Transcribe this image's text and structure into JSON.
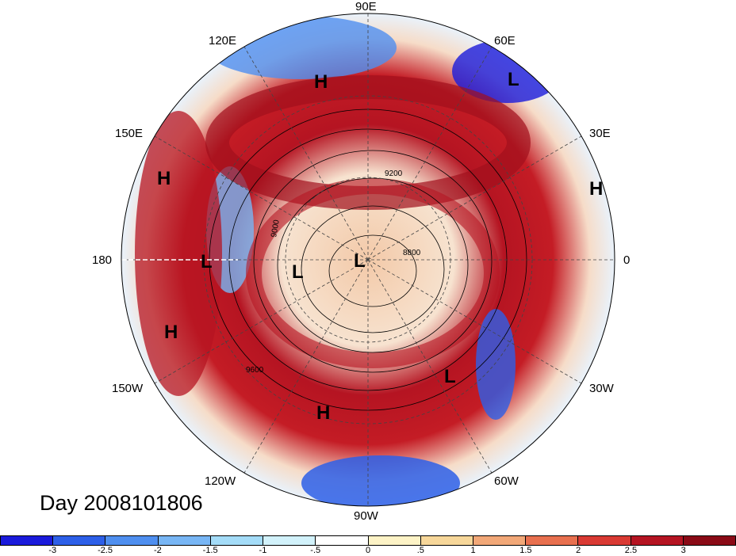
{
  "title": "Day 2008101806",
  "longitude_labels": {
    "top": "90E",
    "upper_left": "120E",
    "upper_right": "60E",
    "left_upper": "150E",
    "right_upper": "30E",
    "left": "180",
    "right": "0",
    "left_lower": "150W",
    "right_lower": "30W",
    "lower_left": "120W",
    "lower_right": "60W",
    "bottom": "90W"
  },
  "pressure_markers": [
    "H",
    "L",
    "H",
    "H",
    "L",
    "L",
    "L",
    "H",
    "H",
    "L"
  ],
  "contour_labels": [
    "9200",
    "8800",
    "9000",
    "9600"
  ],
  "colorbar": {
    "tick_labels": [
      "-3",
      "-2.5",
      "-2",
      "-1.5",
      "-1",
      "-.5",
      "0",
      ".5",
      "1",
      "1.5",
      "2",
      "2.5",
      "3"
    ],
    "colors": [
      "#1a1adb",
      "#2d5fe8",
      "#4f8ff0",
      "#78b6f5",
      "#a4dcf8",
      "#d2f2fb",
      "#ffffff",
      "#fdf3c6",
      "#f7d79a",
      "#f2a878",
      "#e8704f",
      "#d93a33",
      "#b51422",
      "#8a0a16"
    ]
  }
}
